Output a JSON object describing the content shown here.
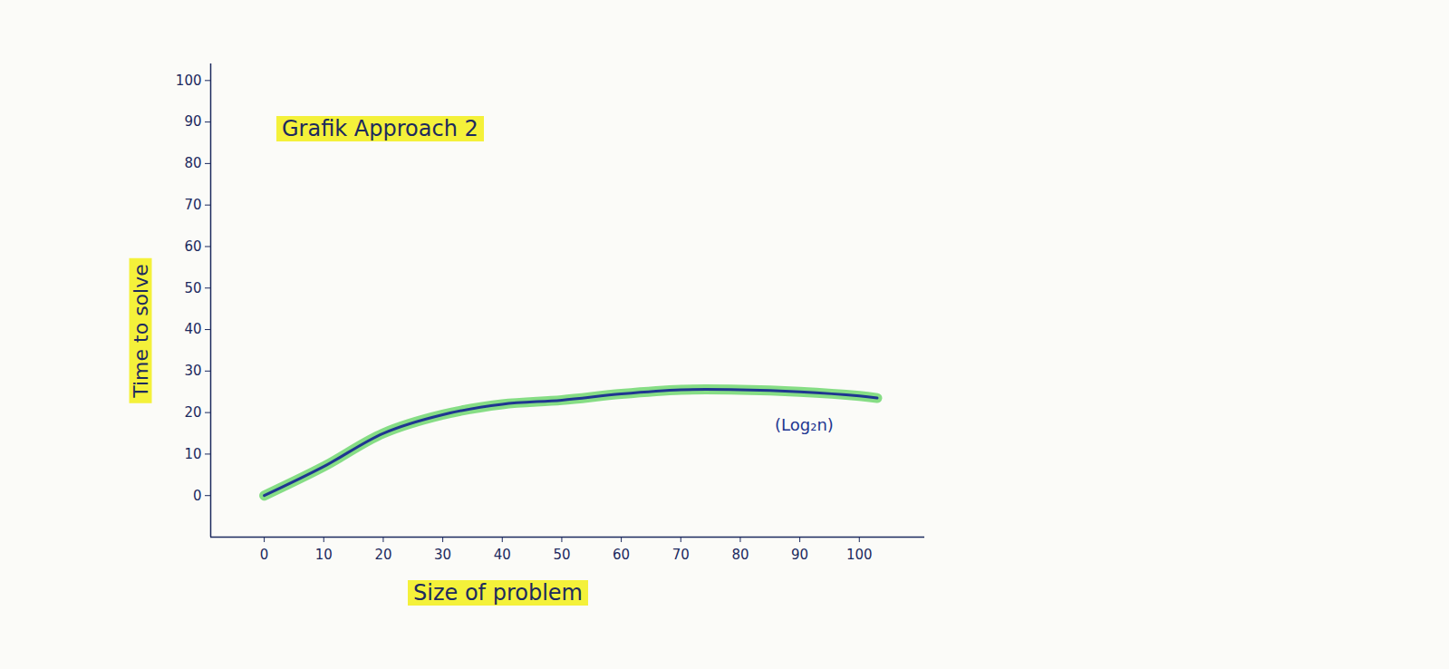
{
  "chart_data": {
    "type": "line",
    "title": "Grafik Approach 2",
    "x_label": "Size of problem",
    "y_label": "Time to solve",
    "x": [
      0,
      10,
      20,
      30,
      40,
      50,
      60,
      70,
      80,
      90,
      100,
      103
    ],
    "series": [
      {
        "name": "(Log₂n)",
        "color": "#1f3690",
        "values": [
          0,
          7,
          15,
          19.5,
          22,
          23,
          24.5,
          25.5,
          25.5,
          25,
          24,
          23.5
        ]
      }
    ],
    "xlim": [
      -9,
      111
    ],
    "ylim": [
      -10,
      104
    ],
    "xticks": [
      0,
      10,
      20,
      30,
      40,
      50,
      60,
      70,
      80,
      90,
      100
    ],
    "yticks": [
      0,
      10,
      20,
      30,
      40,
      50,
      60,
      70,
      80,
      90,
      100
    ],
    "grid": false
  }
}
